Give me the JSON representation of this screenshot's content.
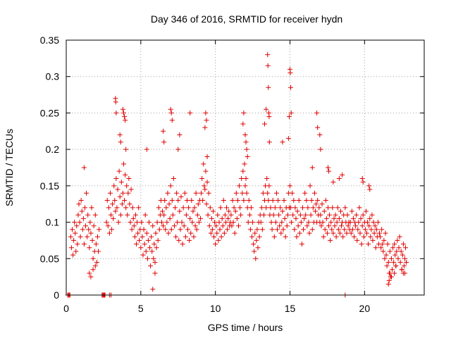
{
  "chart_data": {
    "type": "scatter",
    "title": "Day 346 of 2016, SRMTID for receiver hydn",
    "xlabel": "GPS time / hours",
    "ylabel": "SRMTID / TECUs",
    "xlim": [
      0,
      24
    ],
    "ylim": [
      0,
      0.35
    ],
    "xticks": [
      0,
      5,
      10,
      15,
      20
    ],
    "xtick_labels": [
      "0",
      "5",
      "10",
      "15",
      "20"
    ],
    "yticks": [
      0,
      0.05,
      0.1,
      0.15,
      0.2,
      0.25,
      0.3,
      0.35
    ],
    "ytick_labels": [
      "0",
      "0.05",
      "0.1",
      "0.15",
      "0.2",
      "0.25",
      "0.3",
      "0.35"
    ],
    "grid": true,
    "marker": "+",
    "colors": {
      "series": "#e00000",
      "grid": "#a0a0a0",
      "axes": "#000000"
    },
    "series": [
      {
        "name": "SRMTID",
        "x": [
          0.1,
          0.15,
          0.2,
          0.25,
          2.4,
          2.45,
          2.5,
          2.55,
          2.6,
          2.9,
          3.0,
          18.7,
          0.3,
          0.35,
          0.4,
          0.45,
          0.5,
          0.55,
          0.6,
          0.65,
          0.7,
          0.75,
          0.8,
          0.85,
          0.9,
          0.95,
          1.0,
          1.05,
          1.1,
          1.15,
          1.2,
          1.25,
          1.3,
          1.35,
          1.4,
          1.45,
          1.5,
          1.55,
          1.6,
          1.65,
          1.7,
          1.75,
          1.8,
          1.85,
          1.9,
          1.95,
          2.0,
          2.05,
          2.1,
          2.15,
          2.2,
          1.2,
          1.55,
          1.65,
          1.8,
          1.95,
          2.7,
          2.75,
          2.8,
          2.85,
          2.9,
          2.95,
          3.0,
          3.05,
          3.1,
          3.15,
          3.2,
          3.25,
          3.3,
          3.35,
          3.4,
          3.45,
          3.5,
          3.55,
          3.6,
          3.65,
          3.7,
          3.75,
          3.8,
          3.85,
          3.9,
          3.95,
          4.0,
          4.05,
          4.1,
          4.15,
          4.2,
          4.25,
          4.3,
          4.35,
          4.4,
          4.45,
          4.5,
          3.3,
          3.32,
          3.35,
          3.6,
          3.65,
          3.8,
          3.85,
          3.9,
          3.95,
          4.0,
          4.55,
          4.6,
          4.65,
          4.7,
          4.75,
          4.8,
          4.85,
          4.9,
          4.95,
          5.0,
          5.05,
          5.1,
          5.15,
          5.2,
          5.25,
          5.3,
          5.35,
          5.4,
          5.45,
          5.5,
          5.55,
          5.6,
          5.65,
          5.7,
          5.75,
          5.8,
          5.85,
          5.9,
          5.95,
          6.0,
          6.05,
          6.1,
          6.15,
          6.2,
          6.25,
          6.3,
          6.35,
          6.4,
          6.45,
          6.5,
          5.8,
          5.4,
          5.95,
          6.55,
          6.6,
          6.65,
          6.7,
          6.75,
          6.8,
          6.85,
          6.9,
          6.95,
          7.0,
          7.05,
          7.1,
          7.15,
          7.2,
          7.25,
          7.3,
          7.35,
          7.4,
          7.45,
          7.5,
          7.55,
          7.6,
          7.65,
          7.7,
          7.75,
          7.8,
          7.85,
          7.9,
          7.95,
          8.0,
          8.05,
          8.1,
          8.15,
          8.2,
          8.25,
          8.3,
          8.35,
          8.4,
          8.45,
          8.5,
          8.55,
          8.6,
          8.65,
          8.7,
          8.75,
          8.8,
          8.85,
          8.9,
          8.95,
          9.0,
          7.0,
          7.05,
          7.1,
          6.5,
          6.55,
          8.3,
          7.5,
          7.6,
          9.05,
          9.1,
          9.15,
          9.2,
          9.25,
          9.3,
          9.35,
          9.4,
          9.45,
          9.5,
          9.55,
          9.6,
          9.65,
          9.7,
          9.75,
          9.8,
          9.85,
          9.9,
          9.95,
          10.0,
          10.05,
          10.1,
          10.15,
          10.2,
          10.25,
          10.3,
          10.35,
          10.4,
          10.45,
          10.5,
          10.55,
          10.6,
          10.65,
          10.7,
          10.75,
          10.8,
          10.85,
          10.9,
          10.95,
          11.0,
          9.35,
          9.4,
          9.3,
          9.45,
          11.05,
          11.1,
          11.15,
          11.2,
          11.25,
          11.3,
          11.35,
          11.4,
          11.45,
          11.5,
          11.55,
          11.6,
          11.65,
          11.7,
          11.75,
          11.8,
          11.85,
          11.9,
          11.95,
          12.0,
          12.05,
          12.1,
          12.15,
          12.2,
          12.25,
          12.3,
          12.35,
          12.4,
          12.45,
          12.5,
          12.55,
          12.6,
          12.65,
          12.7,
          12.75,
          12.8,
          12.85,
          12.9,
          12.95,
          13.0,
          11.9,
          12.0,
          12.1,
          11.85,
          12.05,
          12.15,
          13.05,
          13.1,
          13.15,
          13.2,
          13.25,
          13.3,
          13.35,
          13.4,
          13.45,
          13.5,
          13.55,
          13.6,
          13.65,
          13.7,
          13.75,
          13.8,
          13.85,
          13.9,
          13.95,
          14.0,
          14.05,
          14.1,
          14.15,
          14.2,
          14.25,
          14.3,
          14.35,
          14.4,
          14.45,
          14.5,
          14.55,
          14.6,
          14.65,
          14.7,
          14.75,
          14.8,
          14.85,
          14.9,
          14.95,
          15.0,
          13.5,
          13.52,
          13.55,
          13.58,
          13.6,
          13.62,
          13.4,
          13.3,
          15.0,
          15.02,
          15.05,
          15.08,
          14.95,
          14.9,
          14.5,
          15.05,
          15.1,
          15.15,
          15.2,
          15.25,
          15.3,
          15.35,
          15.4,
          15.45,
          15.5,
          15.55,
          15.6,
          15.65,
          15.7,
          15.75,
          15.8,
          15.85,
          15.9,
          15.95,
          16.0,
          16.05,
          16.1,
          16.15,
          16.2,
          16.25,
          16.3,
          16.35,
          16.4,
          16.45,
          16.5,
          16.55,
          16.6,
          16.65,
          16.7,
          16.75,
          16.8,
          16.85,
          16.9,
          16.95,
          17.0,
          16.8,
          16.85,
          17.0,
          17.05,
          16.5,
          17.05,
          17.1,
          17.15,
          17.2,
          17.25,
          17.3,
          17.35,
          17.4,
          17.45,
          17.5,
          17.55,
          17.6,
          17.65,
          17.7,
          17.75,
          17.8,
          17.85,
          17.9,
          17.95,
          18.0,
          18.05,
          18.1,
          18.15,
          18.2,
          18.25,
          18.3,
          18.35,
          18.4,
          18.45,
          18.5,
          18.55,
          18.6,
          18.65,
          18.7,
          18.75,
          18.8,
          18.85,
          18.9,
          18.95,
          19.0,
          17.55,
          17.6,
          18.3,
          18.5,
          17.9,
          19.05,
          19.1,
          19.15,
          19.2,
          19.25,
          19.3,
          19.35,
          19.4,
          19.45,
          19.5,
          19.55,
          19.6,
          19.65,
          19.7,
          19.75,
          19.8,
          19.85,
          19.9,
          19.95,
          20.0,
          20.05,
          20.1,
          20.15,
          20.2,
          20.25,
          20.3,
          20.35,
          20.4,
          20.45,
          20.5,
          20.55,
          20.6,
          20.65,
          20.7,
          20.75,
          20.8,
          20.85,
          20.9,
          20.95,
          21.0,
          19.85,
          19.9,
          20.3,
          20.35,
          21.05,
          21.1,
          21.15,
          21.2,
          21.25,
          21.3,
          21.35,
          21.4,
          21.45,
          21.5,
          21.55,
          21.6,
          21.65,
          21.7,
          21.75,
          21.8,
          21.85,
          21.9,
          21.95,
          22.0,
          22.05,
          22.1,
          22.15,
          22.2,
          22.25,
          22.3,
          22.35,
          22.4,
          22.45,
          22.5,
          22.55,
          22.6,
          22.65,
          22.7,
          22.75,
          22.8,
          21.6,
          21.65,
          21.7,
          21.8,
          22.0,
          22.1,
          22.5,
          22.6,
          22.7
        ],
        "y": [
          0,
          0,
          0,
          0,
          0,
          0,
          0,
          0,
          0,
          0,
          0,
          0,
          0.08,
          0.065,
          0.09,
          0.055,
          0.075,
          0.1,
          0.085,
          0.06,
          0.095,
          0.07,
          0.11,
          0.125,
          0.1,
          0.08,
          0.13,
          0.115,
          0.09,
          0.105,
          0.07,
          0.12,
          0.095,
          0.14,
          0.08,
          0.11,
          0.09,
          0.065,
          0.1,
          0.085,
          0.12,
          0.075,
          0.05,
          0.095,
          0.06,
          0.11,
          0.07,
          0.045,
          0.08,
          0.06,
          0.09,
          0.175,
          0.03,
          0.025,
          0.035,
          0.04,
          0.1,
          0.13,
          0.095,
          0.12,
          0.085,
          0.14,
          0.11,
          0.09,
          0.125,
          0.105,
          0.15,
          0.13,
          0.115,
          0.16,
          0.12,
          0.145,
          0.1,
          0.17,
          0.135,
          0.11,
          0.155,
          0.125,
          0.14,
          0.18,
          0.13,
          0.165,
          0.12,
          0.15,
          0.11,
          0.14,
          0.16,
          0.125,
          0.1,
          0.145,
          0.09,
          0.12,
          0.105,
          0.27,
          0.265,
          0.25,
          0.22,
          0.21,
          0.255,
          0.25,
          0.245,
          0.24,
          0.2,
          0.095,
          0.08,
          0.11,
          0.07,
          0.1,
          0.085,
          0.12,
          0.075,
          0.09,
          0.065,
          0.1,
          0.08,
          0.055,
          0.09,
          0.07,
          0.11,
          0.06,
          0.085,
          0.05,
          0.075,
          0.1,
          0.065,
          0.04,
          0.08,
          0.06,
          0.095,
          0.05,
          0.07,
          0.045,
          0.085,
          0.065,
          0.1,
          0.075,
          0.12,
          0.09,
          0.11,
          0.13,
          0.1,
          0.115,
          0.095,
          0.008,
          0.2,
          0.03,
          0.11,
          0.13,
          0.09,
          0.12,
          0.1,
          0.14,
          0.085,
          0.125,
          0.105,
          0.15,
          0.09,
          0.13,
          0.11,
          0.16,
          0.095,
          0.12,
          0.08,
          0.14,
          0.1,
          0.13,
          0.075,
          0.115,
          0.09,
          0.135,
          0.1,
          0.07,
          0.12,
          0.095,
          0.14,
          0.08,
          0.11,
          0.13,
          0.09,
          0.12,
          0.075,
          0.105,
          0.085,
          0.13,
          0.1,
          0.115,
          0.08,
          0.12,
          0.095,
          0.14,
          0.09,
          0.11,
          0.125,
          0.1,
          0.13,
          0.105,
          0.255,
          0.25,
          0.24,
          0.225,
          0.21,
          0.25,
          0.2,
          0.22,
          0.14,
          0.16,
          0.13,
          0.18,
          0.15,
          0.145,
          0.17,
          0.125,
          0.155,
          0.11,
          0.14,
          0.095,
          0.12,
          0.085,
          0.105,
          0.09,
          0.115,
          0.08,
          0.1,
          0.07,
          0.095,
          0.085,
          0.11,
          0.075,
          0.1,
          0.09,
          0.12,
          0.08,
          0.105,
          0.095,
          0.13,
          0.085,
          0.11,
          0.1,
          0.12,
          0.09,
          0.105,
          0.115,
          0.095,
          0.1,
          0.25,
          0.24,
          0.23,
          0.19,
          0.11,
          0.095,
          0.13,
          0.1,
          0.12,
          0.085,
          0.115,
          0.14,
          0.105,
          0.13,
          0.095,
          0.15,
          0.12,
          0.11,
          0.16,
          0.14,
          0.17,
          0.13,
          0.18,
          0.15,
          0.16,
          0.14,
          0.12,
          0.1,
          0.13,
          0.11,
          0.09,
          0.12,
          0.08,
          0.1,
          0.07,
          0.06,
          0.085,
          0.05,
          0.075,
          0.09,
          0.065,
          0.1,
          0.08,
          0.11,
          0.25,
          0.22,
          0.2,
          0.235,
          0.21,
          0.19,
          0.1,
          0.12,
          0.09,
          0.14,
          0.11,
          0.13,
          0.15,
          0.12,
          0.16,
          0.14,
          0.13,
          0.15,
          0.11,
          0.12,
          0.1,
          0.09,
          0.13,
          0.11,
          0.08,
          0.12,
          0.1,
          0.14,
          0.09,
          0.13,
          0.11,
          0.095,
          0.12,
          0.085,
          0.1,
          0.115,
          0.09,
          0.13,
          0.105,
          0.08,
          0.12,
          0.095,
          0.11,
          0.14,
          0.12,
          0.15,
          0.33,
          0.315,
          0.285,
          0.25,
          0.245,
          0.21,
          0.255,
          0.235,
          0.31,
          0.305,
          0.285,
          0.25,
          0.245,
          0.215,
          0.21,
          0.12,
          0.1,
          0.14,
          0.11,
          0.13,
          0.09,
          0.12,
          0.105,
          0.08,
          0.115,
          0.095,
          0.13,
          0.085,
          0.11,
          0.1,
          0.07,
          0.12,
          0.09,
          0.105,
          0.14,
          0.11,
          0.13,
          0.095,
          0.12,
          0.1,
          0.085,
          0.15,
          0.11,
          0.13,
          0.09,
          0.12,
          0.1,
          0.14,
          0.115,
          0.125,
          0.1,
          0.13,
          0.11,
          0.12,
          0.1,
          0.25,
          0.23,
          0.22,
          0.2,
          0.175,
          0.11,
          0.095,
          0.125,
          0.1,
          0.08,
          0.115,
          0.09,
          0.13,
          0.105,
          0.085,
          0.12,
          0.095,
          0.11,
          0.075,
          0.1,
          0.09,
          0.12,
          0.085,
          0.105,
          0.095,
          0.11,
          0.08,
          0.1,
          0.12,
          0.09,
          0.105,
          0.085,
          0.115,
          0.095,
          0.1,
          0.08,
          0.11,
          0.09,
          0.12,
          0.1,
          0.085,
          0.11,
          0.095,
          0.1,
          0.09,
          0.175,
          0.17,
          0.16,
          0.165,
          0.155,
          0.1,
          0.085,
          0.115,
          0.09,
          0.105,
          0.08,
          0.1,
          0.095,
          0.11,
          0.075,
          0.09,
          0.1,
          0.12,
          0.085,
          0.105,
          0.07,
          0.095,
          0.11,
          0.08,
          0.1,
          0.09,
          0.115,
          0.085,
          0.1,
          0.07,
          0.095,
          0.105,
          0.08,
          0.09,
          0.11,
          0.075,
          0.1,
          0.085,
          0.095,
          0.065,
          0.09,
          0.08,
          0.1,
          0.07,
          0.085,
          0.16,
          0.155,
          0.15,
          0.145,
          0.08,
          0.065,
          0.09,
          0.07,
          0.06,
          0.075,
          0.05,
          0.085,
          0.055,
          0.04,
          0.07,
          0.045,
          0.03,
          0.06,
          0.025,
          0.05,
          0.035,
          0.065,
          0.045,
          0.07,
          0.055,
          0.04,
          0.06,
          0.075,
          0.05,
          0.065,
          0.08,
          0.045,
          0.06,
          0.035,
          0.055,
          0.07,
          0.04,
          0.05,
          0.065,
          0.045,
          0.015,
          0.02,
          0.03,
          0.025,
          0.03,
          0.04,
          0.035,
          0.03,
          0.03
        ]
      }
    ]
  }
}
